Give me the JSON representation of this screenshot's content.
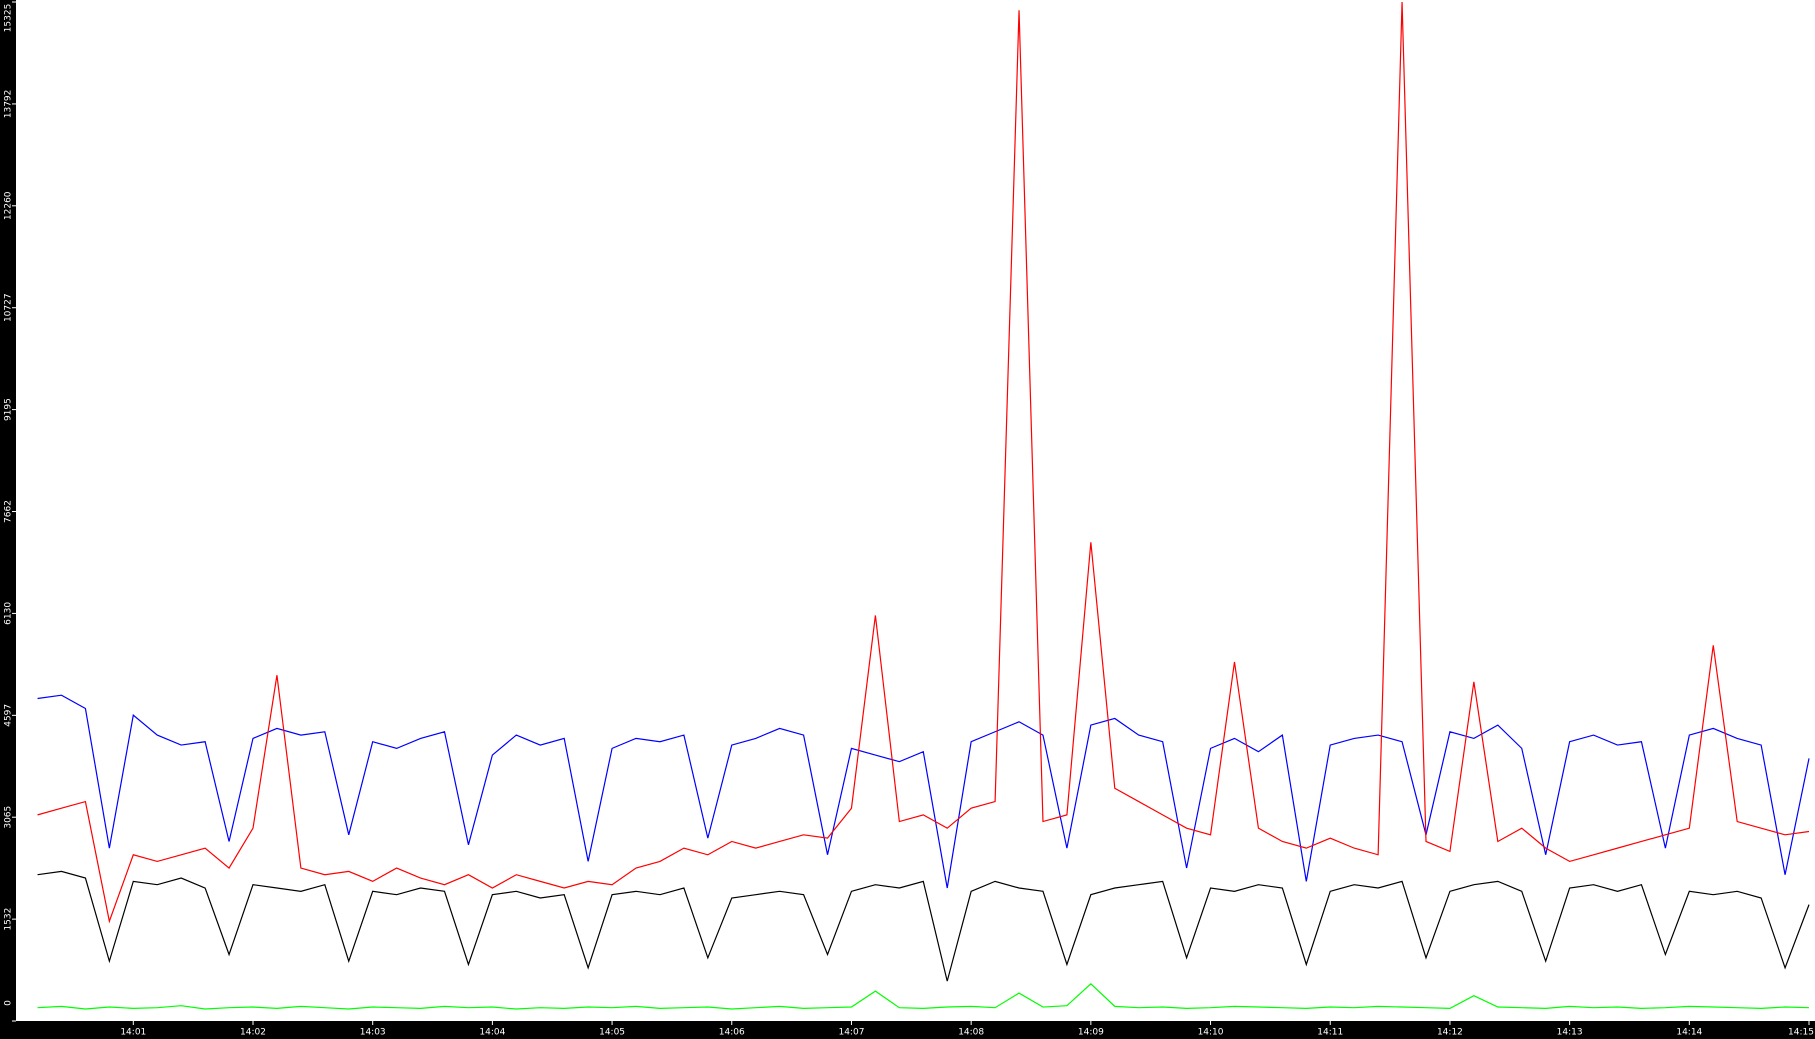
{
  "chart_data": {
    "type": "line",
    "x": [
      0.2,
      0.4,
      0.6,
      0.8,
      1.0,
      1.2,
      1.4,
      1.6,
      1.8,
      2.0,
      2.2,
      2.4,
      2.6,
      2.8,
      3.0,
      3.2,
      3.4,
      3.6,
      3.8,
      4.0,
      4.2,
      4.4,
      4.6,
      4.8,
      5.0,
      5.2,
      5.4,
      5.6,
      5.8,
      6.0,
      6.2,
      6.4,
      6.6,
      6.8,
      7.0,
      7.2,
      7.4,
      7.6,
      7.8,
      8.0,
      8.2,
      8.4,
      8.6,
      8.8,
      9.0,
      9.2,
      9.4,
      9.6,
      9.8,
      10.0,
      10.2,
      10.4,
      10.6,
      10.8,
      11.0,
      11.2,
      11.4,
      11.6,
      11.8,
      12.0,
      12.2,
      12.4,
      12.6,
      12.8,
      13.0,
      13.2,
      13.4,
      13.6,
      13.8,
      14.0,
      14.2,
      14.4,
      14.6,
      14.8,
      15.0
    ],
    "series": [
      {
        "color": "#0000ff",
        "values": [
          4850,
          4900,
          4700,
          2600,
          4600,
          4300,
          4150,
          4200,
          2700,
          4250,
          4400,
          4300,
          4350,
          2800,
          4200,
          4100,
          4250,
          4350,
          2650,
          4000,
          4300,
          4150,
          4250,
          2400,
          4100,
          4250,
          4200,
          4300,
          2750,
          4150,
          4250,
          4400,
          4300,
          2500,
          4100,
          4000,
          3900,
          4050,
          2000,
          4200,
          4350,
          4500,
          4300,
          2600,
          4450,
          4550,
          4300,
          4200,
          2300,
          4100,
          4250,
          4050,
          4300,
          2100,
          4150,
          4250,
          4300,
          4200,
          2800,
          4350,
          4250,
          4450,
          4100,
          2500,
          4200,
          4300,
          4150,
          4200,
          2600,
          4300,
          4400,
          4250,
          4150,
          2200,
          3950
        ]
      },
      {
        "color": "#ff0000",
        "values": [
          3100,
          3200,
          3300,
          1500,
          2500,
          2400,
          2500,
          2600,
          2300,
          2900,
          5200,
          2300,
          2200,
          2250,
          2100,
          2300,
          2150,
          2050,
          2200,
          2000,
          2200,
          2100,
          2000,
          2100,
          2050,
          2300,
          2400,
          2600,
          2500,
          2700,
          2600,
          2700,
          2800,
          2750,
          3200,
          6100,
          3000,
          3100,
          2900,
          3200,
          3300,
          15200,
          3000,
          3100,
          7200,
          3500,
          3300,
          3100,
          2900,
          2800,
          5400,
          2900,
          2700,
          2600,
          2750,
          2600,
          2500,
          15325,
          2700,
          2550,
          5100,
          2700,
          2900,
          2600,
          2400,
          2500,
          2600,
          2700,
          2800,
          2900,
          5650,
          3000,
          2900,
          2800,
          2850
        ]
      },
      {
        "color": "#000000",
        "values": [
          2200,
          2250,
          2150,
          900,
          2100,
          2050,
          2150,
          2000,
          1000,
          2050,
          2000,
          1950,
          2050,
          900,
          1950,
          1900,
          2000,
          1950,
          850,
          1900,
          1950,
          1850,
          1900,
          800,
          1900,
          1950,
          1900,
          2000,
          950,
          1850,
          1900,
          1950,
          1900,
          1000,
          1950,
          2050,
          2000,
          2100,
          600,
          1950,
          2100,
          2000,
          1950,
          850,
          1900,
          2000,
          2050,
          2100,
          950,
          2000,
          1950,
          2050,
          2000,
          850,
          1950,
          2050,
          2000,
          2100,
          950,
          1950,
          2050,
          2100,
          1950,
          900,
          2000,
          2050,
          1950,
          2050,
          1000,
          1950,
          1900,
          1950,
          1850,
          800,
          1750
        ]
      },
      {
        "color": "#00ff00",
        "values": [
          200,
          220,
          180,
          210,
          190,
          200,
          230,
          180,
          200,
          210,
          190,
          220,
          200,
          180,
          210,
          200,
          190,
          220,
          200,
          210,
          180,
          200,
          190,
          210,
          200,
          220,
          190,
          200,
          210,
          180,
          200,
          220,
          190,
          200,
          210,
          450,
          200,
          190,
          210,
          220,
          200,
          420,
          210,
          230,
          560,
          220,
          200,
          210,
          190,
          200,
          220,
          210,
          200,
          190,
          210,
          200,
          220,
          210,
          200,
          190,
          380,
          210,
          200,
          190,
          220,
          200,
          210,
          190,
          200,
          220,
          210,
          200,
          190,
          210,
          200
        ]
      }
    ],
    "xlim": [
      0.02,
      15.05
    ],
    "xticks": [
      {
        "value": 1,
        "label": "14:01"
      },
      {
        "value": 2,
        "label": "14:02"
      },
      {
        "value": 3,
        "label": "14:03"
      },
      {
        "value": 4,
        "label": "14:04"
      },
      {
        "value": 5,
        "label": "14:05"
      },
      {
        "value": 6,
        "label": "14:06"
      },
      {
        "value": 7,
        "label": "14:07"
      },
      {
        "value": 8,
        "label": "14:08"
      },
      {
        "value": 9,
        "label": "14:09"
      },
      {
        "value": 10,
        "label": "14:10"
      },
      {
        "value": 11,
        "label": "14:11"
      },
      {
        "value": 12,
        "label": "14:12"
      },
      {
        "value": 13,
        "label": "14:13"
      },
      {
        "value": 14,
        "label": "14:14"
      },
      {
        "value": 15,
        "label": "14:15"
      }
    ],
    "ylim": [
      0,
      15325
    ],
    "yticks": [
      0,
      1532,
      3065,
      4597,
      6130,
      7662,
      9195,
      10727,
      12260,
      13792,
      15325
    ],
    "grid": false
  }
}
